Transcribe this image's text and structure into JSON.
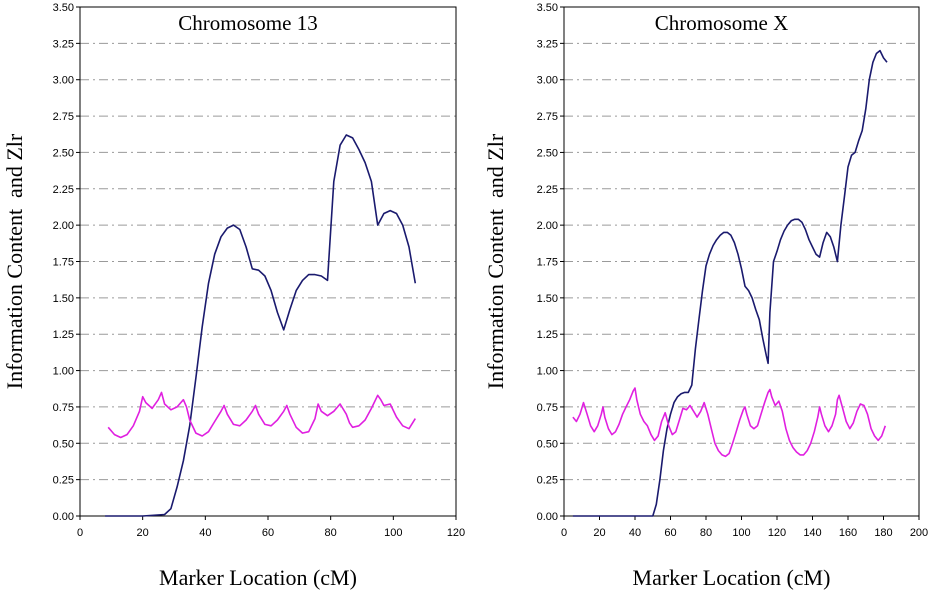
{
  "chart_data": [
    {
      "type": "line",
      "title": "Chromosome 13",
      "xlabel": "Marker Location (cM)",
      "ylabel": "Information Content  and Zlr",
      "xlim": [
        0,
        120
      ],
      "ylim": [
        0,
        3.5
      ],
      "xticks": [
        "0",
        "20",
        "40",
        "60",
        "80",
        "100",
        "120"
      ],
      "yticks": [
        "0.00",
        "0.25",
        "0.50",
        "0.75",
        "1.00",
        "1.25",
        "1.50",
        "1.75",
        "2.00",
        "2.25",
        "2.50",
        "2.75",
        "3.00",
        "3.25",
        "3.50"
      ],
      "grid": true,
      "series": [
        {
          "color": "#1a1a6e",
          "x": [
            8,
            20,
            27,
            29,
            31,
            33,
            35,
            37,
            39,
            41,
            43,
            45,
            47,
            49,
            51,
            53,
            55,
            57,
            59,
            61,
            63,
            65,
            67,
            69,
            71,
            73,
            75,
            77,
            79,
            81,
            83,
            85,
            87,
            89,
            91,
            93,
            95,
            97,
            99,
            101,
            103,
            105,
            107
          ],
          "y": [
            0,
            0,
            0.01,
            0.05,
            0.2,
            0.38,
            0.62,
            0.95,
            1.3,
            1.6,
            1.8,
            1.92,
            1.98,
            2.0,
            1.97,
            1.85,
            1.7,
            1.69,
            1.65,
            1.55,
            1.4,
            1.28,
            1.42,
            1.55,
            1.62,
            1.66,
            1.66,
            1.65,
            1.62,
            2.3,
            2.55,
            2.62,
            2.6,
            2.52,
            2.43,
            2.3,
            2.0,
            2.08,
            2.1,
            2.08,
            2.0,
            1.85,
            1.6
          ]
        },
        {
          "color": "#e020e0",
          "x": [
            9,
            11,
            13,
            15,
            17,
            19,
            20,
            21,
            23,
            25,
            26,
            27,
            29,
            31,
            33,
            34,
            35,
            37,
            39,
            41,
            43,
            45,
            46,
            47,
            49,
            51,
            53,
            55,
            56,
            57,
            59,
            61,
            63,
            65,
            66,
            67,
            69,
            71,
            73,
            75,
            76,
            77,
            79,
            81,
            83,
            85,
            86,
            87,
            89,
            91,
            93,
            95,
            96,
            97,
            99,
            101,
            103,
            105,
            107
          ],
          "y": [
            0.61,
            0.56,
            0.54,
            0.56,
            0.62,
            0.72,
            0.82,
            0.78,
            0.74,
            0.8,
            0.85,
            0.77,
            0.73,
            0.75,
            0.8,
            0.75,
            0.66,
            0.57,
            0.55,
            0.58,
            0.65,
            0.72,
            0.76,
            0.7,
            0.63,
            0.62,
            0.66,
            0.72,
            0.76,
            0.7,
            0.63,
            0.62,
            0.66,
            0.72,
            0.76,
            0.7,
            0.61,
            0.57,
            0.58,
            0.67,
            0.77,
            0.72,
            0.69,
            0.72,
            0.77,
            0.7,
            0.64,
            0.61,
            0.62,
            0.66,
            0.74,
            0.83,
            0.8,
            0.76,
            0.77,
            0.68,
            0.62,
            0.6,
            0.67
          ]
        }
      ]
    },
    {
      "type": "line",
      "title": "Chromosome X",
      "xlabel": "Marker Location (cM)",
      "ylabel": "Information Content  and Zlr",
      "xlim": [
        0,
        200
      ],
      "ylim": [
        0,
        3.5
      ],
      "xticks": [
        "0",
        "20",
        "40",
        "60",
        "80",
        "100",
        "120",
        "140",
        "160",
        "180",
        "200"
      ],
      "yticks": [
        "0.00",
        "0.25",
        "0.50",
        "0.75",
        "1.00",
        "1.25",
        "1.50",
        "1.75",
        "2.00",
        "2.25",
        "2.50",
        "2.75",
        "3.00",
        "3.25",
        "3.50"
      ],
      "grid": true,
      "series": [
        {
          "color": "#1a1a6e",
          "x": [
            5,
            48,
            50,
            52,
            54,
            56,
            58,
            60,
            62,
            64,
            66,
            68,
            70,
            72,
            74,
            76,
            78,
            80,
            82,
            84,
            86,
            88,
            90,
            92,
            94,
            96,
            98,
            100,
            102,
            104,
            106,
            108,
            110,
            112,
            114,
            115,
            116,
            118,
            120,
            122,
            124,
            126,
            128,
            130,
            132,
            134,
            136,
            138,
            140,
            142,
            144,
            146,
            148,
            150,
            152,
            154,
            156,
            158,
            160,
            162,
            164,
            166,
            168,
            170,
            172,
            174,
            176,
            178,
            180,
            182
          ],
          "y": [
            0,
            0,
            0,
            0.08,
            0.25,
            0.45,
            0.6,
            0.7,
            0.78,
            0.82,
            0.84,
            0.85,
            0.85,
            0.9,
            1.15,
            1.35,
            1.55,
            1.72,
            1.8,
            1.86,
            1.9,
            1.93,
            1.95,
            1.95,
            1.93,
            1.88,
            1.8,
            1.7,
            1.58,
            1.55,
            1.5,
            1.42,
            1.35,
            1.22,
            1.1,
            1.05,
            1.4,
            1.75,
            1.82,
            1.9,
            1.96,
            2.0,
            2.03,
            2.04,
            2.04,
            2.02,
            1.97,
            1.9,
            1.85,
            1.8,
            1.78,
            1.88,
            1.95,
            1.92,
            1.85,
            1.75,
            2.0,
            2.2,
            2.4,
            2.48,
            2.5,
            2.58,
            2.65,
            2.8,
            3.0,
            3.12,
            3.18,
            3.2,
            3.15,
            3.12
          ]
        },
        {
          "color": "#e020e0",
          "x": [
            5,
            7,
            9,
            11,
            13,
            15,
            17,
            19,
            21,
            22,
            23,
            25,
            27,
            29,
            31,
            33,
            35,
            37,
            39,
            40,
            41,
            43,
            45,
            47,
            49,
            51,
            53,
            55,
            57,
            59,
            61,
            63,
            65,
            67,
            69,
            71,
            73,
            75,
            77,
            79,
            81,
            83,
            85,
            87,
            89,
            91,
            93,
            95,
            97,
            99,
            101,
            102,
            103,
            105,
            107,
            109,
            111,
            113,
            115,
            116,
            117,
            119,
            121,
            123,
            125,
            127,
            129,
            131,
            133,
            135,
            137,
            139,
            141,
            143,
            144,
            145,
            147,
            149,
            151,
            153,
            154,
            155,
            157,
            159,
            161,
            163,
            165,
            167,
            169,
            171,
            173,
            175,
            177,
            179,
            181
          ],
          "y": [
            0.68,
            0.65,
            0.7,
            0.78,
            0.7,
            0.62,
            0.58,
            0.62,
            0.7,
            0.75,
            0.68,
            0.6,
            0.56,
            0.58,
            0.63,
            0.7,
            0.75,
            0.8,
            0.86,
            0.88,
            0.8,
            0.7,
            0.65,
            0.62,
            0.56,
            0.52,
            0.55,
            0.65,
            0.71,
            0.62,
            0.56,
            0.58,
            0.66,
            0.74,
            0.73,
            0.76,
            0.72,
            0.68,
            0.72,
            0.78,
            0.7,
            0.6,
            0.5,
            0.45,
            0.42,
            0.41,
            0.43,
            0.5,
            0.58,
            0.66,
            0.73,
            0.75,
            0.7,
            0.62,
            0.6,
            0.62,
            0.7,
            0.78,
            0.85,
            0.87,
            0.82,
            0.76,
            0.79,
            0.72,
            0.6,
            0.52,
            0.47,
            0.44,
            0.42,
            0.42,
            0.45,
            0.5,
            0.58,
            0.68,
            0.75,
            0.7,
            0.62,
            0.58,
            0.62,
            0.7,
            0.8,
            0.83,
            0.74,
            0.65,
            0.6,
            0.64,
            0.72,
            0.77,
            0.76,
            0.7,
            0.6,
            0.55,
            0.52,
            0.55,
            0.62
          ]
        }
      ]
    }
  ]
}
